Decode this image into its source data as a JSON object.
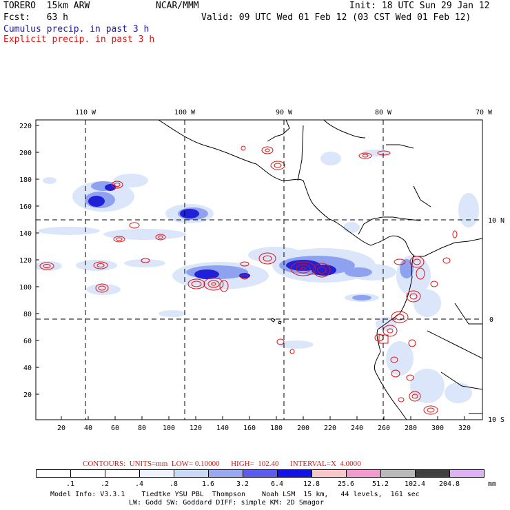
{
  "header": {
    "model": "TORERO  15km ARW",
    "org": "NCAR/MMM",
    "init": "Init: 18 UTC Sun 29 Jan 12",
    "fcst": "Fcst:   63 h",
    "valid": "Valid: 09 UTC Wed 01 Feb 12 (03 CST Wed 01 Feb 12)",
    "cumulus": "Cumulus precip. in past 3 h",
    "explicit": "Explicit precip. in past 3 h",
    "cumulus_color": "#1a1aa8",
    "explicit_color": "#dd1111"
  },
  "map": {
    "lon_labels": [
      "110 W",
      "100 W",
      "90 W",
      "80 W",
      "70 W"
    ],
    "lat_labels": [
      "10 N",
      "0",
      "10 S"
    ],
    "y_ticks": [
      "220",
      "200",
      "180",
      "160",
      "140",
      "120",
      "100",
      "80",
      "60",
      "40",
      "20"
    ],
    "x_ticks": [
      "20",
      "40",
      "60",
      "80",
      "100",
      "120",
      "140",
      "160",
      "180",
      "200",
      "220",
      "240",
      "260",
      "280",
      "300",
      "320"
    ],
    "ocean_color": "#ffffff",
    "coast_color": "#000000",
    "cumulus_shade_colors": [
      "#dbe6fa",
      "#b5c8f5",
      "#7d90f0",
      "#3a3ae0",
      "#1010d0"
    ],
    "explicit_contour_color": "#e01010"
  },
  "footer": {
    "contours_line": "CONTOURS:  UNITS=mm  LOW= 0.10000      HIGH=  102.40      INTERVAL=X  4.0000",
    "colorbar_labels": [
      ".1",
      ".2",
      ".4",
      ".8",
      "1.6",
      "3.2",
      "6.4",
      "12.8",
      "25.6",
      "51.2",
      "102.4",
      "204.8"
    ],
    "colorbar_colors": [
      "#ffffff",
      "#ffffff",
      "#ffffff",
      "#eef3fd",
      "#c9daf5",
      "#99a8f0",
      "#5b5bf0",
      "#1111e8",
      "#f8c8c8",
      "#f09ad0",
      "#b9b9b9",
      "#404040",
      "#dcb2f5"
    ],
    "units": "mm",
    "model_info_1": "Model Info: V3.3.1    Tiedtke YSU PBL  Thompson    Noah LSM  15 km,   44 levels,  161 sec",
    "model_info_2": "LW: Godd SW: Goddard DIFF: simple KM: 2D Smagor"
  }
}
